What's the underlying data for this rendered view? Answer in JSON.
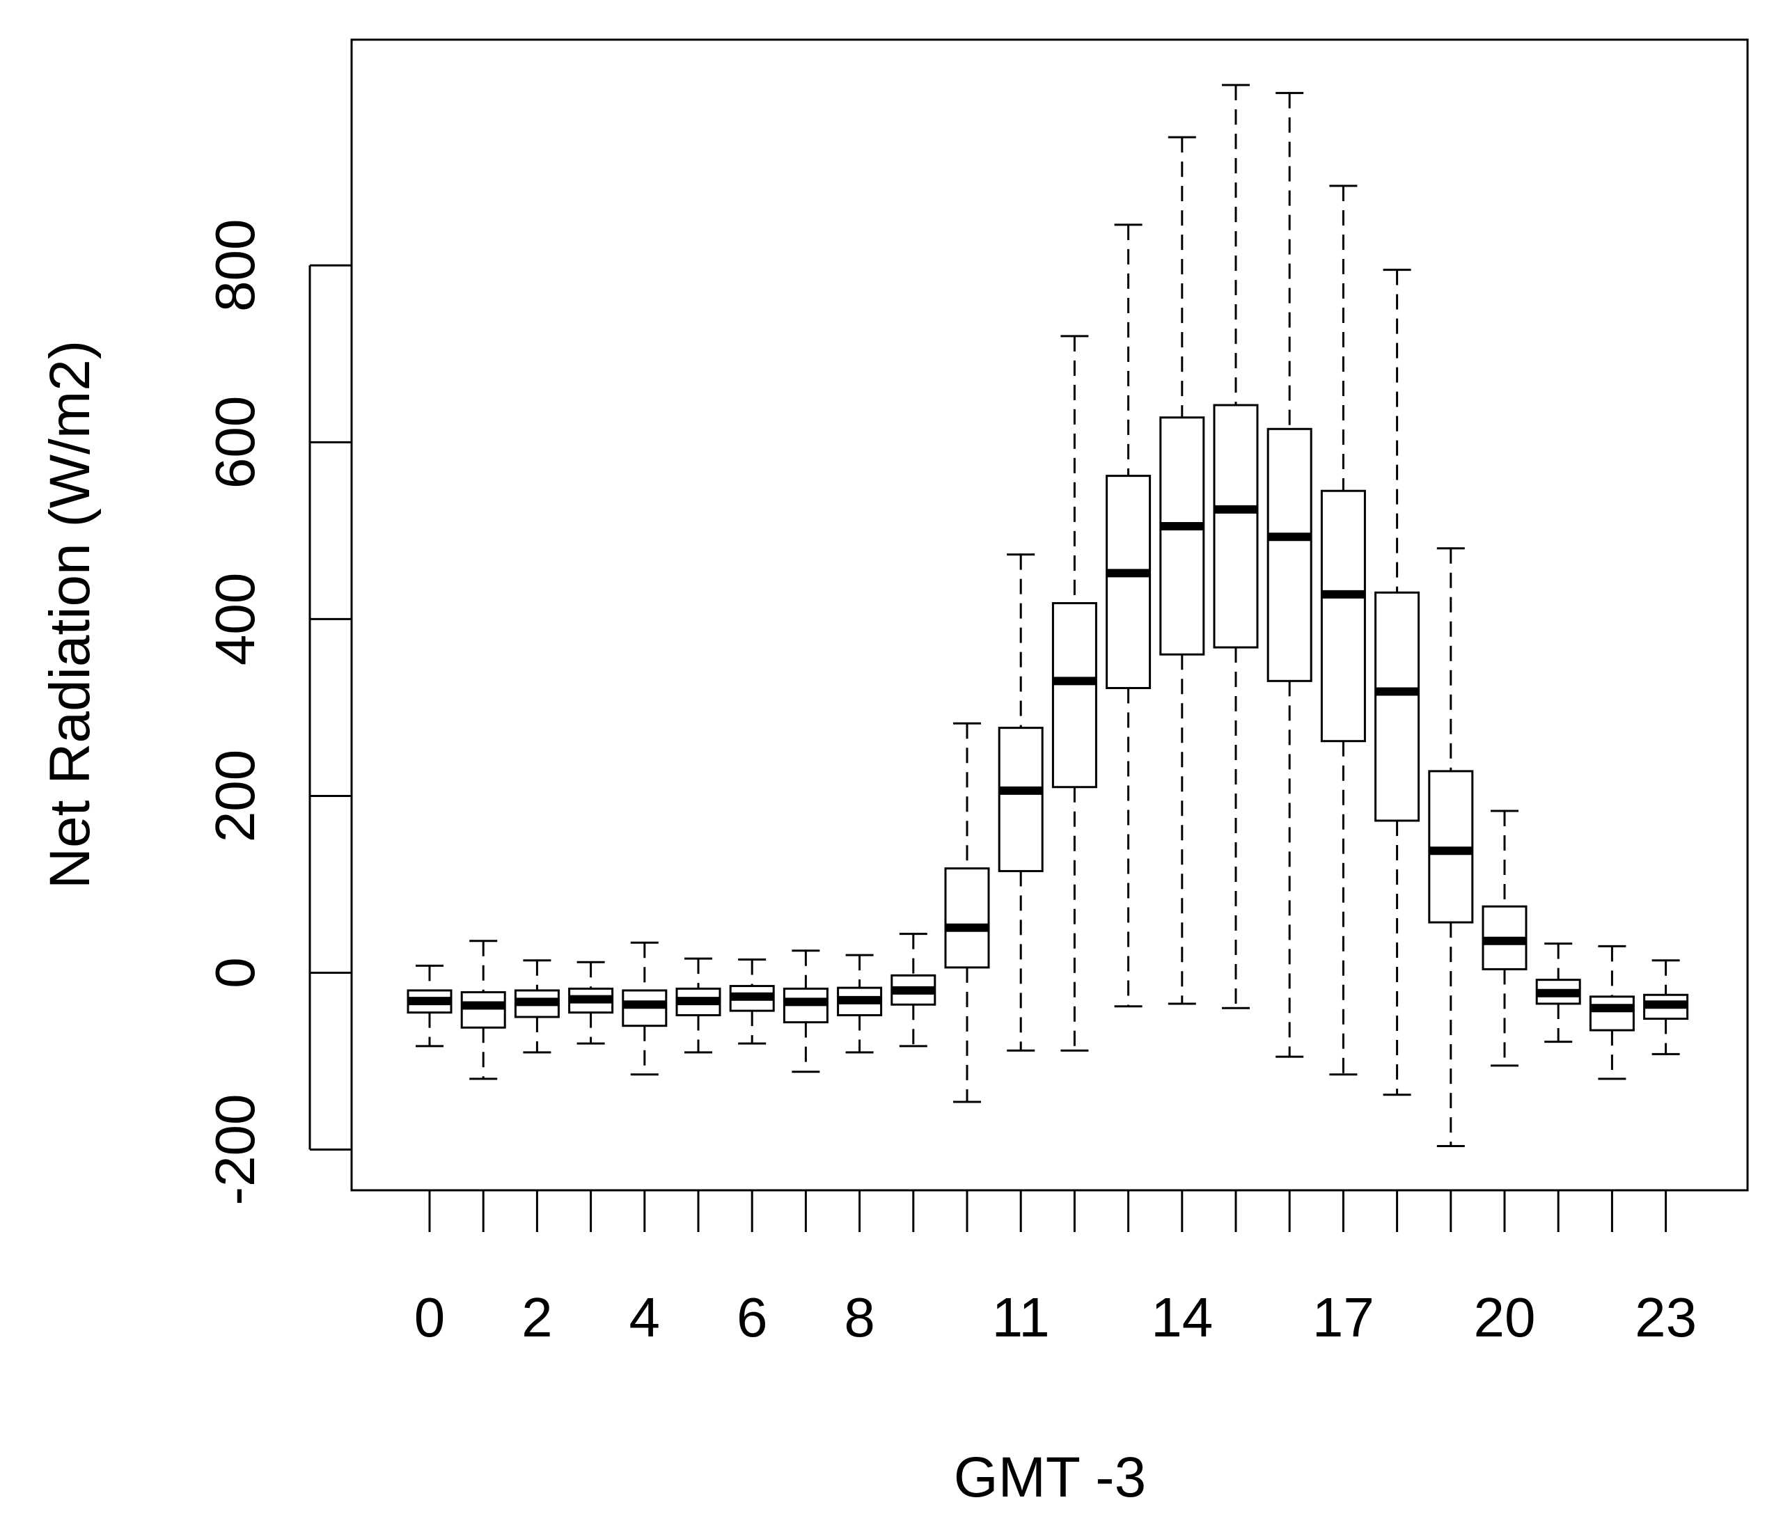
{
  "chart_data": {
    "type": "boxplot",
    "title": "",
    "xlabel": "GMT -3",
    "ylabel": "Net Radiation (W/m2)",
    "ylim": [
      -245,
      1030
    ],
    "yticks": [
      -200,
      0,
      200,
      400,
      600,
      800
    ],
    "ytick_labels": [
      "-200",
      "0",
      "200",
      "400",
      "600",
      "800"
    ],
    "categories": [
      0,
      1,
      2,
      3,
      4,
      5,
      6,
      7,
      8,
      9,
      10,
      11,
      12,
      13,
      14,
      15,
      16,
      17,
      18,
      19,
      20,
      21,
      22,
      23
    ],
    "xtick_labels": [
      "0",
      "",
      "2",
      "",
      "4",
      "",
      "6",
      "",
      "8",
      "",
      "",
      "11",
      "",
      "",
      "14",
      "",
      "",
      "17",
      "",
      "",
      "20",
      "",
      "",
      "23"
    ],
    "boxes": [
      {
        "hour": 0,
        "whisker_low": -83,
        "q1": -45,
        "median": -32,
        "q3": -20,
        "whisker_high": 8
      },
      {
        "hour": 1,
        "whisker_low": -120,
        "q1": -62,
        "median": -37,
        "q3": -22,
        "whisker_high": 36
      },
      {
        "hour": 2,
        "whisker_low": -90,
        "q1": -50,
        "median": -33,
        "q3": -20,
        "whisker_high": 14
      },
      {
        "hour": 3,
        "whisker_low": -80,
        "q1": -45,
        "median": -30,
        "q3": -18,
        "whisker_high": 12
      },
      {
        "hour": 4,
        "whisker_low": -115,
        "q1": -60,
        "median": -36,
        "q3": -20,
        "whisker_high": 34
      },
      {
        "hour": 5,
        "whisker_low": -90,
        "q1": -48,
        "median": -32,
        "q3": -18,
        "whisker_high": 16
      },
      {
        "hour": 6,
        "whisker_low": -80,
        "q1": -43,
        "median": -27,
        "q3": -15,
        "whisker_high": 15
      },
      {
        "hour": 7,
        "whisker_low": -112,
        "q1": -56,
        "median": -33,
        "q3": -18,
        "whisker_high": 25
      },
      {
        "hour": 8,
        "whisker_low": -90,
        "q1": -48,
        "median": -31,
        "q3": -17,
        "whisker_high": 20
      },
      {
        "hour": 9,
        "whisker_low": -83,
        "q1": -36,
        "median": -20,
        "q3": -3,
        "whisker_high": 44
      },
      {
        "hour": 10,
        "whisker_low": -146,
        "q1": 6,
        "median": 51,
        "q3": 118,
        "whisker_high": 282
      },
      {
        "hour": 11,
        "whisker_low": -88,
        "q1": 115,
        "median": 206,
        "q3": 277,
        "whisker_high": 473
      },
      {
        "hour": 12,
        "whisker_low": -88,
        "q1": 210,
        "median": 330,
        "q3": 418,
        "whisker_high": 720
      },
      {
        "hour": 13,
        "whisker_low": -38,
        "q1": 322,
        "median": 452,
        "q3": 562,
        "whisker_high": 846
      },
      {
        "hour": 14,
        "whisker_low": -35,
        "q1": 360,
        "median": 505,
        "q3": 628,
        "whisker_high": 945
      },
      {
        "hour": 15,
        "whisker_low": -40,
        "q1": 368,
        "median": 524,
        "q3": 642,
        "whisker_high": 1004
      },
      {
        "hour": 16,
        "whisker_low": -95,
        "q1": 330,
        "median": 493,
        "q3": 615,
        "whisker_high": 995
      },
      {
        "hour": 17,
        "whisker_low": -115,
        "q1": 262,
        "median": 428,
        "q3": 545,
        "whisker_high": 890
      },
      {
        "hour": 18,
        "whisker_low": -138,
        "q1": 172,
        "median": 318,
        "q3": 430,
        "whisker_high": 795
      },
      {
        "hour": 19,
        "whisker_low": -196,
        "q1": 57,
        "median": 138,
        "q3": 228,
        "whisker_high": 480
      },
      {
        "hour": 20,
        "whisker_low": -105,
        "q1": 4,
        "median": 36,
        "q3": 75,
        "whisker_high": 183
      },
      {
        "hour": 21,
        "whisker_low": -78,
        "q1": -35,
        "median": -23,
        "q3": -8,
        "whisker_high": 33
      },
      {
        "hour": 22,
        "whisker_low": -120,
        "q1": -65,
        "median": -40,
        "q3": -27,
        "whisker_high": 30
      },
      {
        "hour": 23,
        "whisker_low": -92,
        "q1": -52,
        "median": -36,
        "q3": -25,
        "whisker_high": 14
      }
    ]
  }
}
